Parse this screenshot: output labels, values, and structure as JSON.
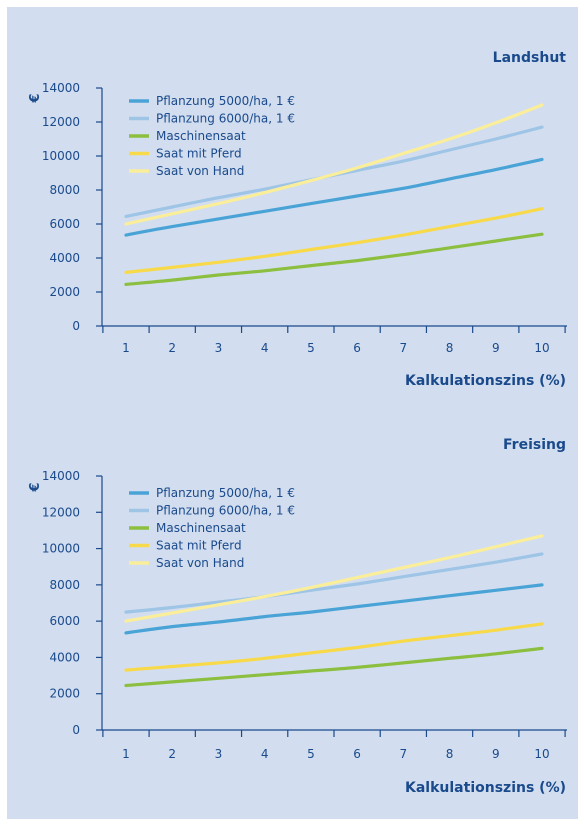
{
  "chart_data": [
    {
      "type": "line",
      "title": "Landshut",
      "xlabel": "Kalkulationszins (%)",
      "ylabel": "€",
      "x": [
        1,
        2,
        3,
        4,
        5,
        6,
        7,
        8,
        9,
        10
      ],
      "ylim": [
        0,
        14000
      ],
      "yticks": [
        0,
        2000,
        4000,
        6000,
        8000,
        10000,
        12000,
        14000
      ],
      "legend_position": "top-left",
      "grid": false,
      "series": [
        {
          "name": "Pflanzung 5000/ha, 1 €",
          "color": "#4aa3d6",
          "values": [
            5350,
            5850,
            6300,
            6750,
            7200,
            7650,
            8100,
            8650,
            9200,
            9800
          ]
        },
        {
          "name": "Pflanzung 6000/ha, 1 €",
          "color": "#9ec4e6",
          "values": [
            6450,
            7000,
            7550,
            8050,
            8600,
            9150,
            9700,
            10350,
            11000,
            11700
          ]
        },
        {
          "name": "Maschinensaat",
          "color": "#8cbf3f",
          "values": [
            2450,
            2700,
            3000,
            3250,
            3550,
            3850,
            4200,
            4600,
            5000,
            5400
          ]
        },
        {
          "name": "Saat mit Pferd",
          "color": "#f7d94a",
          "values": [
            3150,
            3450,
            3750,
            4100,
            4500,
            4900,
            5350,
            5850,
            6350,
            6900
          ]
        },
        {
          "name": "Saat von Hand",
          "color": "#fbee9a",
          "values": [
            6000,
            6600,
            7200,
            7850,
            8550,
            9300,
            10150,
            11000,
            11950,
            13000
          ]
        }
      ]
    },
    {
      "type": "line",
      "title": "Freising",
      "xlabel": "Kalkulationszins (%)",
      "ylabel": "€",
      "x": [
        1,
        2,
        3,
        4,
        5,
        6,
        7,
        8,
        9,
        10
      ],
      "ylim": [
        0,
        14000
      ],
      "yticks": [
        0,
        2000,
        4000,
        6000,
        8000,
        10000,
        12000,
        14000
      ],
      "legend_position": "top-left",
      "grid": false,
      "series": [
        {
          "name": "Pflanzung 5000/ha, 1 €",
          "color": "#4aa3d6",
          "values": [
            5350,
            5700,
            5950,
            6250,
            6500,
            6800,
            7100,
            7400,
            7700,
            8000
          ]
        },
        {
          "name": "Pflanzung 6000/ha, 1 €",
          "color": "#9ec4e6",
          "values": [
            6500,
            6750,
            7050,
            7350,
            7700,
            8050,
            8450,
            8850,
            9250,
            9700
          ]
        },
        {
          "name": "Maschinensaat",
          "color": "#8cbf3f",
          "values": [
            2450,
            2650,
            2850,
            3050,
            3250,
            3450,
            3700,
            3950,
            4200,
            4500
          ]
        },
        {
          "name": "Saat mit Pferd",
          "color": "#f7d94a",
          "values": [
            3300,
            3500,
            3700,
            3950,
            4250,
            4550,
            4900,
            5200,
            5500,
            5850
          ]
        },
        {
          "name": "Saat von Hand",
          "color": "#fbee9a",
          "values": [
            6000,
            6450,
            6900,
            7350,
            7850,
            8400,
            8950,
            9500,
            10100,
            10700
          ]
        }
      ]
    }
  ]
}
